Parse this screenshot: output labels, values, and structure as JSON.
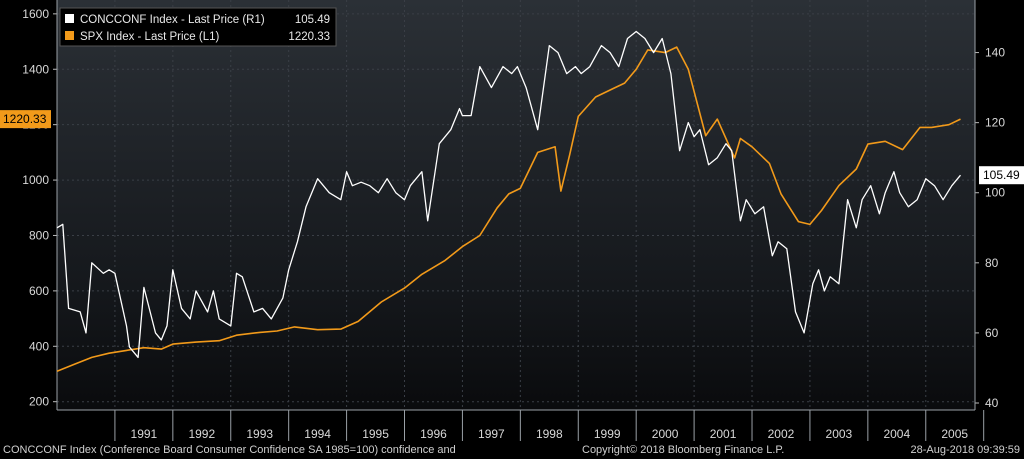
{
  "chart_data": {
    "type": "line",
    "legend": {
      "placement": "top-left",
      "entries": [
        {
          "name": "CONCCONF Index - Last Price (R1)",
          "last": "105.49",
          "color": "#ffffff"
        },
        {
          "name": "SPX Index - Last Price (L1)",
          "last": "1220.33",
          "color": "#f29a1a"
        }
      ]
    },
    "x_labels": [
      "1991",
      "1992",
      "1993",
      "1994",
      "1995",
      "1996",
      "1997",
      "1998",
      "1999",
      "2000",
      "2001",
      "2002",
      "2003",
      "2004",
      "2005"
    ],
    "left_axis": {
      "ylim": [
        170,
        1650
      ],
      "ticks": [
        "1600",
        "1400",
        "1200",
        "1000",
        "800",
        "600",
        "400",
        "200"
      ],
      "tick_values": [
        1600,
        1400,
        1200,
        1000,
        800,
        600,
        400,
        200
      ]
    },
    "right_axis": {
      "ylim": [
        38,
        155
      ],
      "ticks": [
        "140",
        "120",
        "100",
        "80",
        "60",
        "40"
      ],
      "tick_values": [
        140,
        120,
        100,
        80,
        60,
        40
      ]
    },
    "left_last_label": "1220.33",
    "right_last_label": "105.49",
    "grid": true,
    "series": [
      {
        "name": "SPX Index - Last Price (L1)",
        "axis": "left",
        "color": "#f29a1a",
        "x": [
          1990.0,
          1990.3,
          1990.6,
          1990.9,
          1991.2,
          1991.5,
          1991.8,
          1992.0,
          1992.4,
          1992.8,
          1993.1,
          1993.5,
          1993.8,
          1994.1,
          1994.5,
          1994.9,
          1995.2,
          1995.6,
          1996.0,
          1996.3,
          1996.7,
          1997.0,
          1997.3,
          1997.6,
          1997.8,
          1998.0,
          1998.3,
          1998.6,
          1998.7,
          1998.85,
          1999.0,
          1999.3,
          1999.6,
          1999.8,
          2000.0,
          2000.2,
          2000.5,
          2000.7,
          2000.9,
          2001.0,
          2001.2,
          2001.4,
          2001.7,
          2001.8,
          2002.0,
          2002.3,
          2002.5,
          2002.8,
          2003.0,
          2003.2,
          2003.5,
          2003.8,
          2004.0,
          2004.3,
          2004.6,
          2004.9,
          2005.1,
          2005.4,
          2005.6
        ],
        "y": [
          310,
          335,
          360,
          375,
          385,
          395,
          390,
          408,
          415,
          420,
          440,
          450,
          455,
          470,
          460,
          462,
          490,
          560,
          610,
          660,
          710,
          760,
          800,
          900,
          950,
          970,
          1100,
          1120,
          960,
          1090,
          1230,
          1300,
          1330,
          1350,
          1400,
          1470,
          1460,
          1480,
          1400,
          1320,
          1160,
          1220,
          1080,
          1150,
          1120,
          1060,
          950,
          850,
          840,
          890,
          980,
          1040,
          1130,
          1140,
          1110,
          1190,
          1190,
          1200,
          1220
        ]
      },
      {
        "name": "CONCCONF Index - Last Price (R1)",
        "axis": "right",
        "color": "#ffffff",
        "x": [
          1990.0,
          1990.1,
          1990.2,
          1990.4,
          1990.5,
          1990.6,
          1990.8,
          1990.9,
          1991.0,
          1991.2,
          1991.25,
          1991.4,
          1991.5,
          1991.7,
          1991.8,
          1991.9,
          1992.0,
          1992.15,
          1992.3,
          1992.4,
          1992.6,
          1992.7,
          1992.8,
          1993.0,
          1993.1,
          1993.2,
          1993.4,
          1993.55,
          1993.7,
          1993.8,
          1993.9,
          1994.0,
          1994.15,
          1994.3,
          1994.5,
          1994.7,
          1994.9,
          1995.0,
          1995.1,
          1995.25,
          1995.4,
          1995.55,
          1995.7,
          1995.85,
          1996.0,
          1996.1,
          1996.3,
          1996.4,
          1996.6,
          1996.8,
          1996.95,
          1997.0,
          1997.15,
          1997.3,
          1997.5,
          1997.7,
          1997.85,
          1997.95,
          1998.1,
          1998.3,
          1998.5,
          1998.65,
          1998.8,
          1998.95,
          1999.05,
          1999.2,
          1999.4,
          1999.55,
          1999.7,
          1999.85,
          2000.0,
          2000.15,
          2000.3,
          2000.45,
          2000.6,
          2000.75,
          2000.9,
          2001.0,
          2001.1,
          2001.25,
          2001.4,
          2001.55,
          2001.65,
          2001.8,
          2001.9,
          2002.05,
          2002.2,
          2002.35,
          2002.45,
          2002.6,
          2002.75,
          2002.9,
          2003.05,
          2003.15,
          2003.25,
          2003.35,
          2003.5,
          2003.65,
          2003.8,
          2003.9,
          2004.05,
          2004.2,
          2004.3,
          2004.45,
          2004.55,
          2004.7,
          2004.85,
          2005.0,
          2005.15,
          2005.3,
          2005.45,
          2005.6
        ],
        "y": [
          90,
          91,
          67,
          66,
          60,
          80,
          77,
          78,
          77,
          62,
          56,
          53,
          73,
          60,
          58,
          62,
          78,
          67,
          64,
          72,
          66,
          72,
          64,
          62,
          77,
          76,
          66,
          67,
          64,
          67,
          70,
          78,
          86,
          96,
          104,
          100,
          98,
          106,
          102,
          103,
          102,
          100,
          104,
          100,
          98,
          102,
          106,
          92,
          114,
          118,
          124,
          122,
          122,
          136,
          130,
          136,
          134,
          136,
          130,
          118,
          142,
          140,
          134,
          136,
          134,
          136,
          142,
          140,
          136,
          144,
          146,
          144,
          140,
          144,
          134,
          112,
          120,
          116,
          118,
          108,
          110,
          114,
          112,
          92,
          98,
          94,
          96,
          82,
          86,
          84,
          66,
          60,
          74,
          78,
          72,
          76,
          74,
          98,
          90,
          98,
          102,
          94,
          100,
          106,
          100,
          96,
          98,
          104,
          102,
          98,
          102,
          105
        ]
      }
    ]
  },
  "footer": {
    "left": "CONCCONF Index (Conference Board Consumer Confidence SA 1985=100) confidence and",
    "center": "Copyright© 2018 Bloomberg Finance L.P.",
    "right": "28-Aug-2018 09:39:59"
  },
  "colors": {
    "background": "#000000",
    "gridline": "#3a3f46",
    "axis_text": "#d8d8d8",
    "spx": "#f29a1a",
    "concconf": "#ffffff"
  }
}
